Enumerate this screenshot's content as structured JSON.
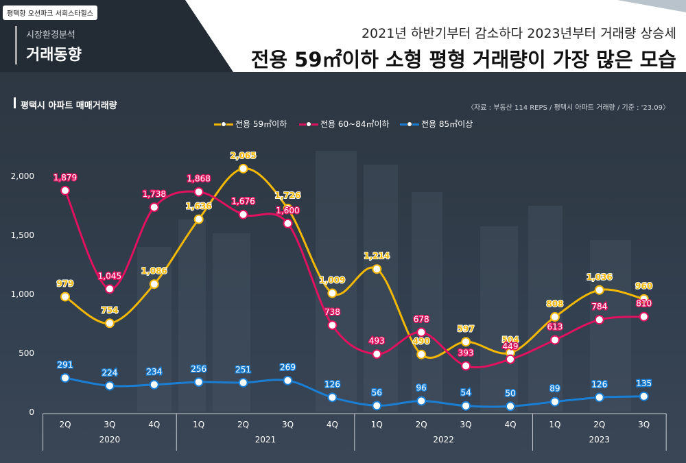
{
  "brand": "평택항 오션파크 서희스타힐스",
  "section": {
    "subtitle": "시장환경분석",
    "title": "거래동향"
  },
  "headline": {
    "line1": "2021년 하반기부터 감소하다 2023년부터 거래량 상승세",
    "line2": "전용 59㎡이하 소형 평형 거래량이 가장 많은 모습"
  },
  "chart_title": "평택시 아파트 매매거래량",
  "source": "〈자료 : 부동산 114 REPS / 평택시 아파트 거래량 / 기준 : '23.09〉",
  "colors": {
    "small": "#f5b800",
    "mid": "#e0115f",
    "large": "#1a7fd4"
  },
  "chart_data": {
    "type": "line",
    "categories": [
      "2Q",
      "3Q",
      "4Q",
      "1Q",
      "2Q",
      "3Q",
      "4Q",
      "1Q",
      "2Q",
      "3Q",
      "4Q",
      "1Q",
      "2Q",
      "3Q"
    ],
    "years": [
      {
        "label": "2020",
        "span": 3
      },
      {
        "label": "2021",
        "span": 4
      },
      {
        "label": "2022",
        "span": 4
      },
      {
        "label": "2023",
        "span": 3
      }
    ],
    "ylim": [
      0,
      2000
    ],
    "yticks": [
      0,
      500,
      1000,
      1500,
      2000
    ],
    "ytick_labels": [
      "0",
      "500",
      "1,000",
      "1,500",
      "2,000"
    ],
    "legend_placement": "top-center",
    "series": [
      {
        "name": "전용 59㎡이하",
        "color": "#f5b800",
        "values": [
          979,
          754,
          1086,
          1636,
          2065,
          1726,
          1009,
          1214,
          490,
          597,
          504,
          808,
          1036,
          960
        ],
        "labels": [
          "979",
          "754",
          "1,086",
          "1,636",
          "2,065",
          "1,726",
          "1,009",
          "1,214",
          "490",
          "597",
          "504",
          "808",
          "1,036",
          "960"
        ]
      },
      {
        "name": "전용 60~84㎡이하",
        "color": "#e0115f",
        "values": [
          1879,
          1045,
          1738,
          1868,
          1676,
          1600,
          738,
          493,
          678,
          393,
          449,
          613,
          784,
          810
        ],
        "labels": [
          "1,879",
          "1,045",
          "1,738",
          "1,868",
          "1,676",
          "1,600",
          "738",
          "493",
          "678",
          "393",
          "449",
          "613",
          "784",
          "810"
        ]
      },
      {
        "name": "전용 85㎡이상",
        "color": "#1a7fd4",
        "values": [
          291,
          224,
          234,
          256,
          251,
          269,
          126,
          56,
          96,
          54,
          50,
          89,
          126,
          135
        ],
        "labels": [
          "291",
          "224",
          "234",
          "256",
          "251",
          "269",
          "126",
          "56",
          "96",
          "54",
          "50",
          "89",
          "126",
          "135"
        ]
      }
    ]
  }
}
